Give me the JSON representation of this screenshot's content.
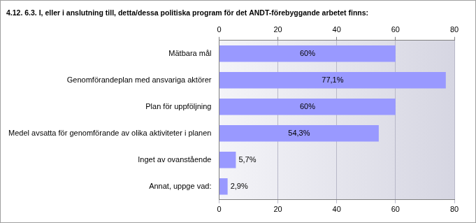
{
  "chart_data": {
    "type": "bar",
    "orientation": "horizontal",
    "title": "4.12. 6.3. I, eller i anslutning till, detta/dessa politiska program för det ANDT-förebyggande arbetet finns:",
    "categories": [
      "Mätbara mål",
      "Genomförandeplan med ansvariga aktörer",
      "Plan för uppföljning",
      "Medel avsatta för genomförande av olika aktiviteter i planen",
      "Inget av ovanstående",
      "Annat, uppge vad:"
    ],
    "values": [
      60,
      77.1,
      60,
      54.3,
      5.7,
      2.9
    ],
    "value_labels": [
      "60%",
      "77,1%",
      "60%",
      "54,3%",
      "5,7%",
      "2,9%"
    ],
    "color": "#9999ff",
    "xlim": [
      0,
      80
    ],
    "xticks": [
      0,
      20,
      40,
      60,
      80
    ],
    "grid": true,
    "data_labels": true
  }
}
